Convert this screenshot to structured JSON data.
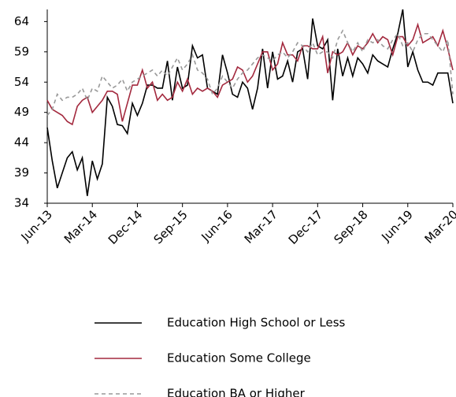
{
  "chart_data": {
    "type": "line",
    "categories": [
      "Jun-13",
      null,
      null,
      null,
      null,
      null,
      null,
      null,
      null,
      "Mar-14",
      null,
      null,
      null,
      null,
      null,
      null,
      null,
      null,
      "Dec-14",
      null,
      null,
      null,
      null,
      null,
      null,
      null,
      null,
      "Sep-15",
      null,
      null,
      null,
      null,
      null,
      null,
      null,
      null,
      "Jun-16",
      null,
      null,
      null,
      null,
      null,
      null,
      null,
      null,
      "Mar-17",
      null,
      null,
      null,
      null,
      null,
      null,
      null,
      null,
      "Dec-17",
      null,
      null,
      null,
      null,
      null,
      null,
      null,
      null,
      "Sep-18",
      null,
      null,
      null,
      null,
      null,
      null,
      null,
      null,
      "Jun-19",
      null,
      null,
      null,
      null,
      null,
      null,
      null,
      null,
      "Mar-20"
    ],
    "series": [
      {
        "name": "Education High School or Less",
        "color": "#000000",
        "style": "solid",
        "values": [
          46.5,
          41,
          36.5,
          39,
          41.5,
          42.5,
          39.5,
          41.5,
          35.2,
          41,
          38,
          40.5,
          51.5,
          50,
          47,
          46.8,
          45.5,
          50.5,
          48.5,
          50.5,
          53.5,
          53.5,
          53,
          53,
          57.5,
          51,
          56.5,
          53,
          53.5,
          60,
          58,
          58.5,
          53,
          52.5,
          52,
          58.5,
          55.5,
          52,
          51.5,
          54,
          53,
          49.5,
          53,
          59.5,
          53,
          59,
          54.5,
          55,
          57.5,
          54,
          59,
          59.5,
          54.5,
          64.5,
          60,
          59.5,
          61,
          51,
          59.5,
          55,
          58,
          55,
          58,
          57,
          55.5,
          58.5,
          57.5,
          57,
          56.5,
          59.5,
          62,
          66,
          56.5,
          59,
          56,
          54,
          54,
          53.5,
          55.5,
          55.5,
          55.5,
          50.5
        ]
      },
      {
        "name": "Education Some College",
        "color": "#a3293e",
        "style": "solid",
        "values": [
          51,
          49.5,
          49,
          48.5,
          47.5,
          47,
          50,
          51,
          51.5,
          49,
          50,
          51,
          52.5,
          52.5,
          52,
          47.5,
          50.5,
          53.5,
          53.5,
          56,
          53,
          54,
          51,
          52,
          51,
          51.5,
          54,
          52.5,
          54.5,
          52,
          53,
          52.5,
          53,
          52.5,
          51.5,
          53.5,
          54,
          54.5,
          56.5,
          56,
          54,
          55,
          57,
          59,
          59,
          56,
          57,
          60.5,
          58.5,
          58.5,
          57.5,
          60,
          60,
          59.5,
          59.5,
          61.5,
          55.5,
          59,
          58.5,
          59,
          60.5,
          58.5,
          60,
          59.5,
          60.5,
          62,
          60.5,
          61.5,
          61,
          58.5,
          61.5,
          61.5,
          60,
          61,
          63.5,
          60.5,
          61,
          61.5,
          60,
          62.5,
          59.5,
          56
        ]
      },
      {
        "name": "Education BA or Higher",
        "color": "#999999",
        "style": "dashed",
        "values": [
          48.5,
          49.5,
          52,
          51,
          51.5,
          51.5,
          52,
          53,
          51,
          53,
          52.5,
          55,
          54,
          53,
          53.5,
          54.5,
          52.5,
          54,
          54.5,
          55,
          55.5,
          56,
          55,
          56,
          55,
          56.5,
          58,
          56,
          57,
          58.5,
          56,
          55.5,
          54.5,
          52,
          53,
          55,
          54,
          53,
          54.5,
          55.5,
          56,
          57,
          58,
          58.5,
          58,
          57.5,
          58.5,
          59,
          58,
          59,
          60.5,
          60,
          59,
          60.5,
          58.5,
          59,
          59,
          58,
          61,
          62.5,
          60.5,
          59,
          60.5,
          59,
          61,
          60.5,
          61,
          60,
          59.5,
          61,
          62,
          60,
          60.5,
          59,
          61,
          62,
          62,
          61,
          60,
          59,
          61,
          52
        ]
      }
    ],
    "ylim": [
      34,
      66
    ],
    "yticks": [
      34,
      39,
      44,
      49,
      54,
      59,
      64
    ],
    "grid": false
  }
}
